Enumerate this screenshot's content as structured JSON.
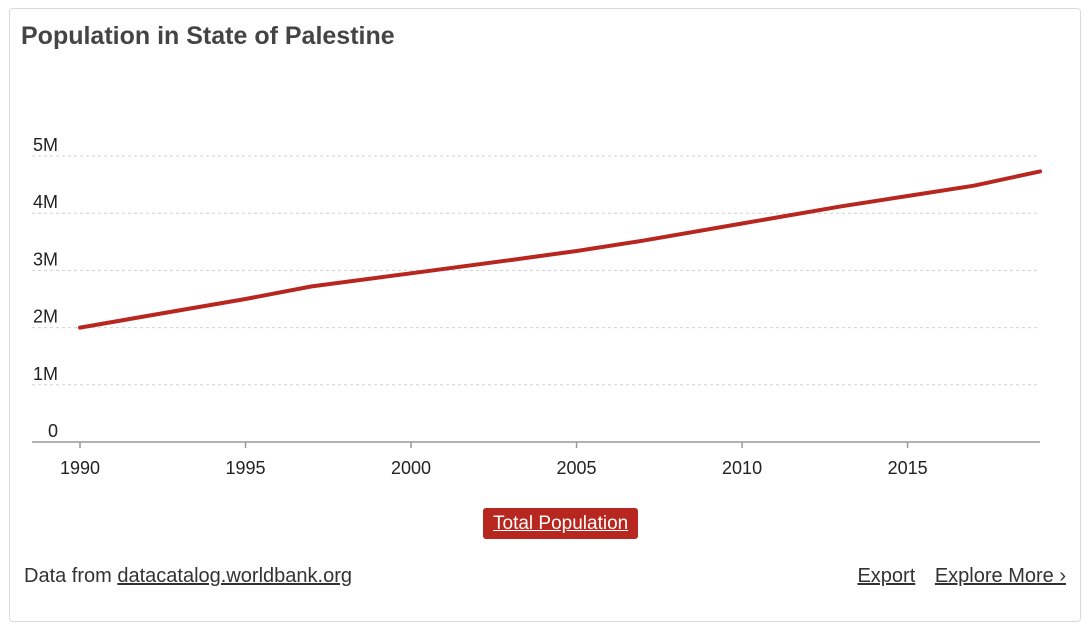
{
  "title": "Population in State of Palestine",
  "legend": {
    "label": "Total Population",
    "color": "#b8271f"
  },
  "footer": {
    "source_prefix": "Data from",
    "source_link": "datacatalog.worldbank.org",
    "export_label": "Export",
    "explore_label": "Explore More ›"
  },
  "chart_data": {
    "type": "line",
    "title": "Population in State of Palestine",
    "xlabel": "",
    "ylabel": "",
    "xlim": [
      1990,
      2019
    ],
    "ylim": [
      0,
      5000000
    ],
    "grid": true,
    "legend_position": "bottom",
    "x_ticks": [
      1990,
      1995,
      2000,
      2005,
      2010,
      2015
    ],
    "x_tick_labels": [
      "1990",
      "1995",
      "2000",
      "2005",
      "2010",
      "2015"
    ],
    "y_ticks": [
      0,
      1000000,
      2000000,
      3000000,
      4000000,
      5000000
    ],
    "y_tick_labels": [
      "0",
      "1M",
      "2M",
      "3M",
      "4M",
      "5M"
    ],
    "series": [
      {
        "name": "Total Population",
        "color": "#b8271f",
        "x": [
          1990,
          1993,
          1995,
          1997,
          2000,
          2003,
          2005,
          2007,
          2010,
          2013,
          2015,
          2017,
          2019
        ],
        "y": [
          2000000,
          2300000,
          2500000,
          2720000,
          2950000,
          3180000,
          3340000,
          3520000,
          3820000,
          4120000,
          4300000,
          4480000,
          4730000
        ]
      }
    ]
  }
}
